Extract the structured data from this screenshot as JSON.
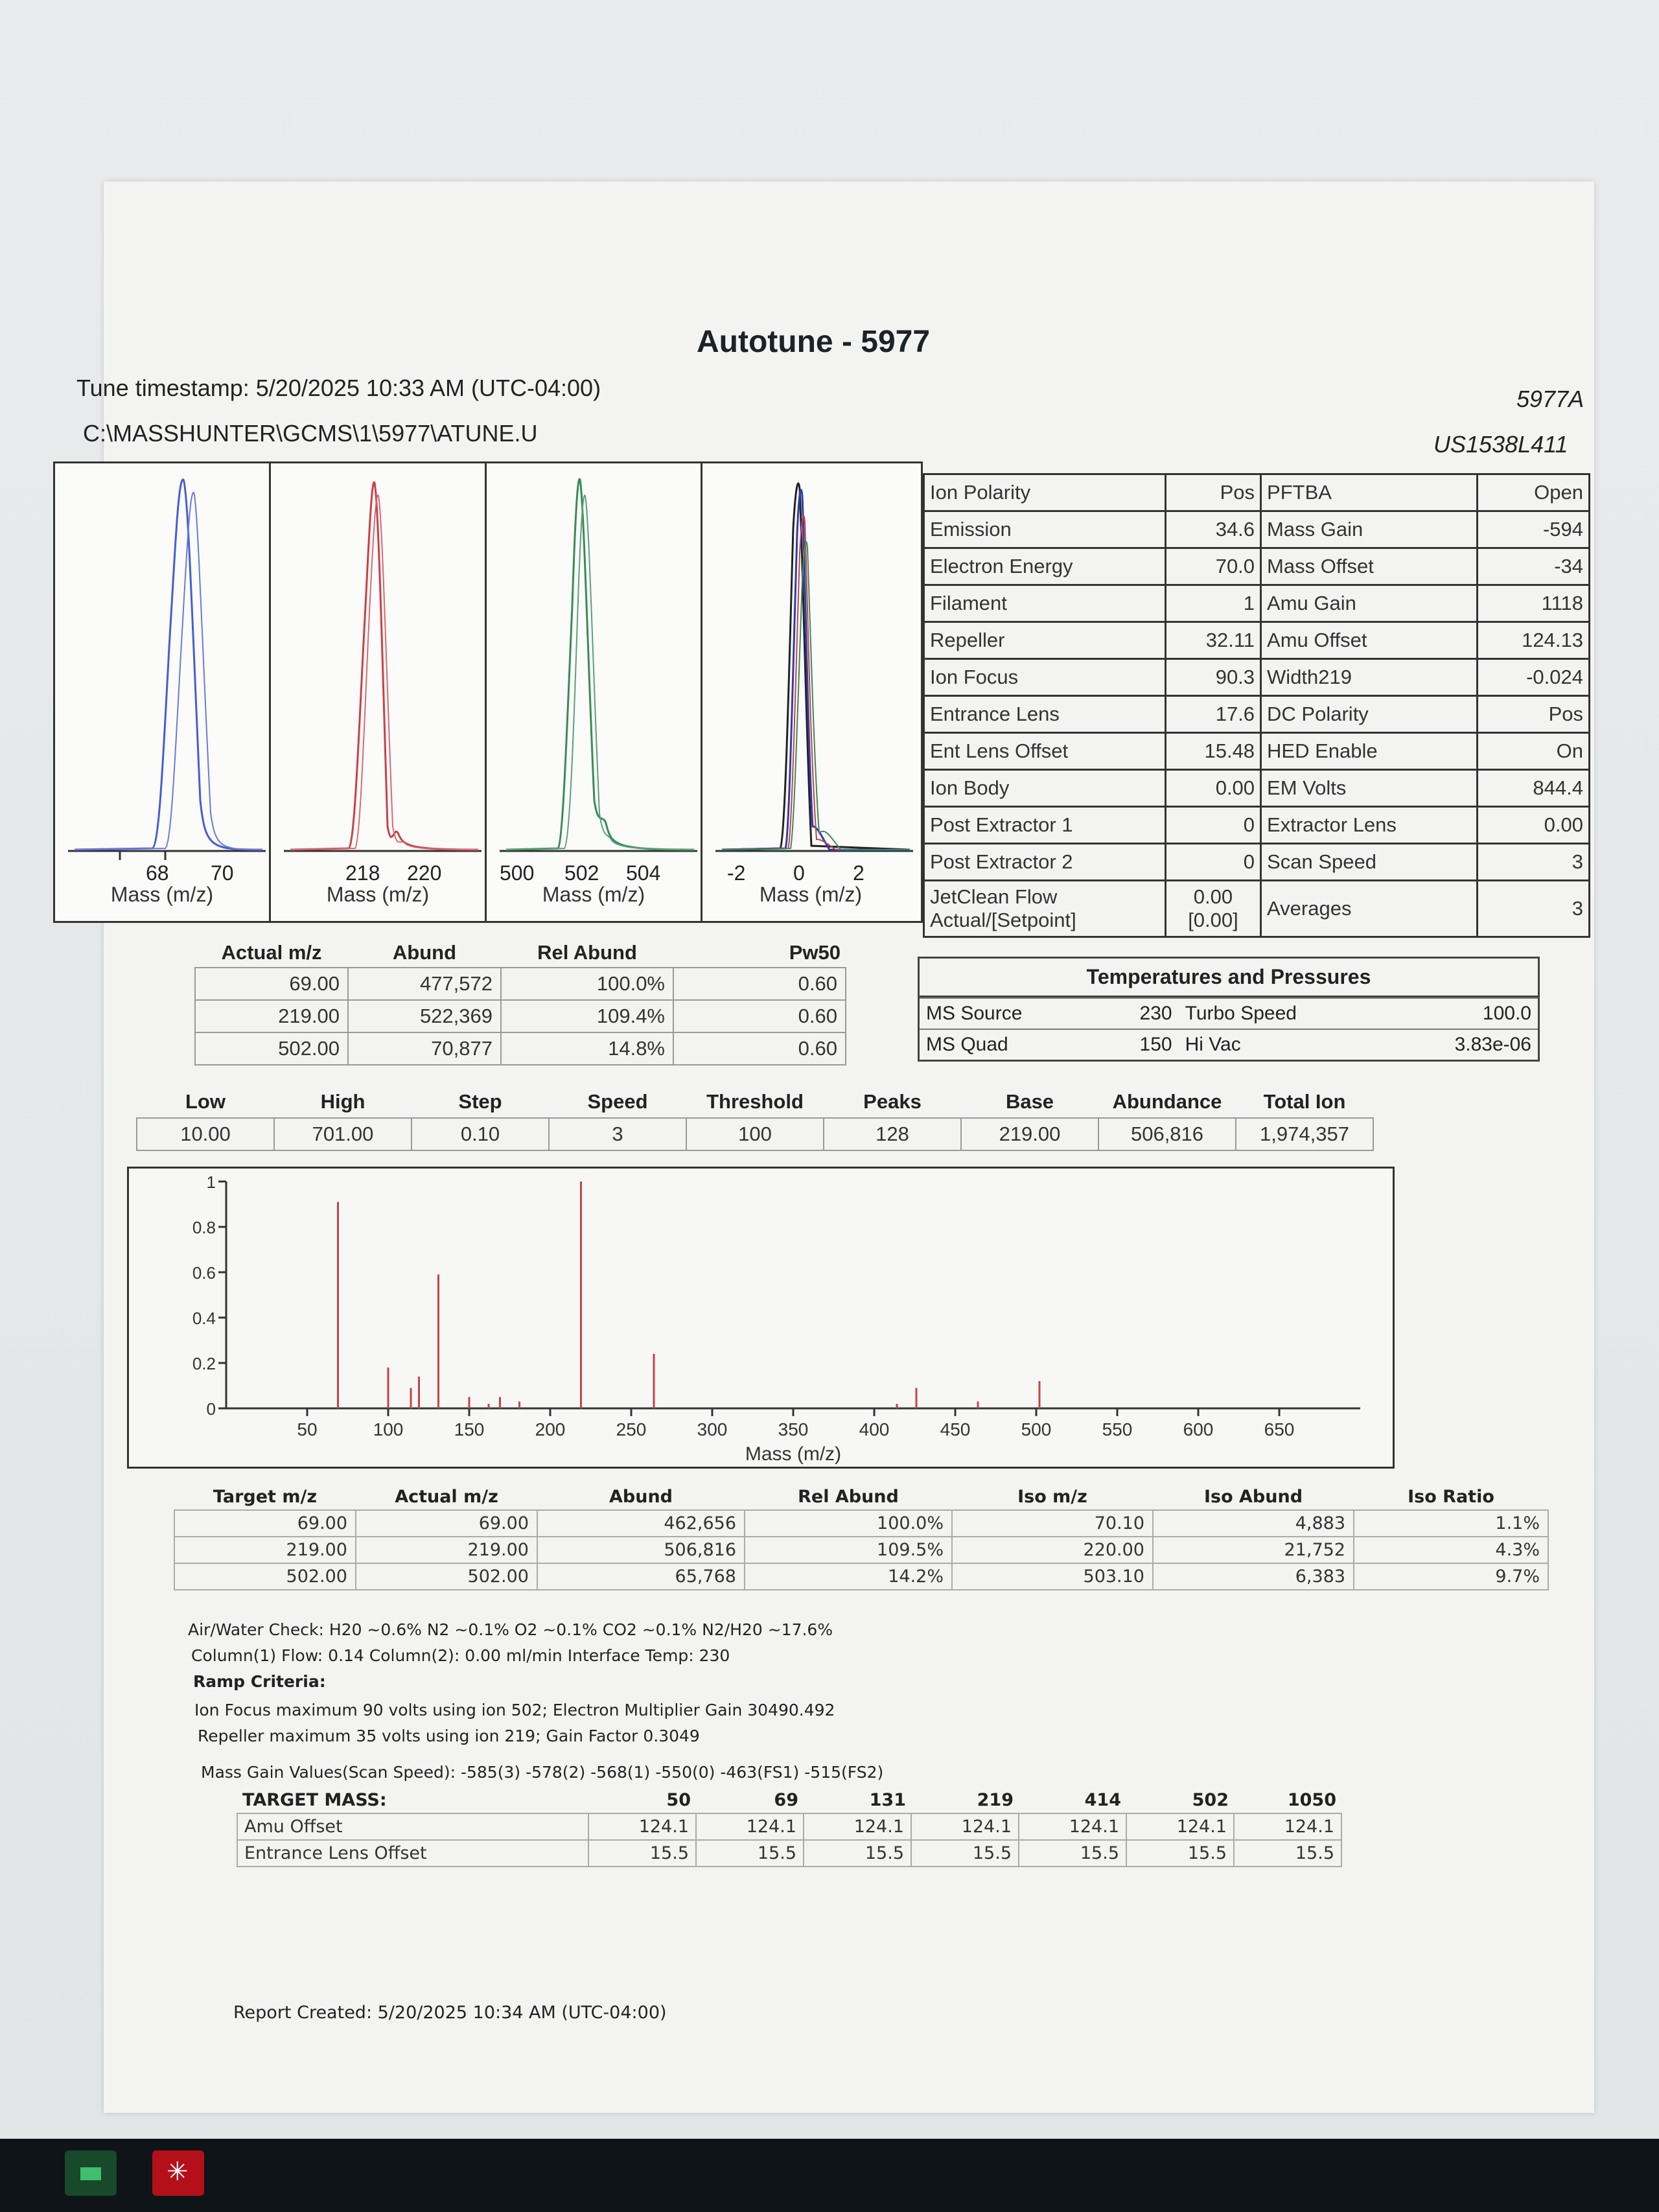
{
  "report": {
    "title": "Autotune - 5977",
    "timestamp": "Tune timestamp: 5/20/2025 10:33 AM  (UTC-04:00)",
    "path": "C:\\MASSHUNTER\\GCMS\\1\\5977\\ATUNE.U",
    "model": "5977A",
    "serial": "US1538L411",
    "created": "Report Created: 5/20/2025 10:34 AM  (UTC-04:00)"
  },
  "peak_panels": [
    {
      "ticks": [
        "68",
        "70"
      ],
      "xlabel": "Mass (m/z)",
      "color": "#4a5cd0"
    },
    {
      "ticks": [
        "218",
        "220"
      ],
      "xlabel": "Mass (m/z)",
      "color": "#c8404a"
    },
    {
      "ticks": [
        "500",
        "502",
        "504"
      ],
      "xlabel": "Mass (m/z)",
      "color": "#3a8a5a"
    },
    {
      "ticks": [
        "-2",
        "0",
        "2"
      ],
      "xlabel": "Mass (m/z)",
      "color": "#2d3fa8"
    }
  ],
  "params": [
    [
      "Ion Polarity",
      "Pos",
      "PFTBA",
      "Open"
    ],
    [
      "Emission",
      "34.6",
      "Mass Gain",
      "-594"
    ],
    [
      "Electron Energy",
      "70.0",
      "Mass Offset",
      "-34"
    ],
    [
      "Filament",
      "1",
      "Amu Gain",
      "1118"
    ],
    [
      "Repeller",
      "32.11",
      "Amu Offset",
      "124.13"
    ],
    [
      "Ion Focus",
      "90.3",
      "Width219",
      "-0.024"
    ],
    [
      "Entrance Lens",
      "17.6",
      "DC Polarity",
      "Pos"
    ],
    [
      "Ent Lens Offset",
      "15.48",
      "HED Enable",
      "On"
    ],
    [
      "Ion Body",
      "0.00",
      "EM Volts",
      "844.4"
    ],
    [
      "Post Extractor 1",
      "0",
      "Extractor Lens",
      "0.00"
    ],
    [
      "Post Extractor 2",
      "0",
      "Scan Speed",
      "3"
    ]
  ],
  "jetclean": {
    "label1": "JetClean Flow",
    "label2": "Actual/[Setpoint]",
    "val1": "0.00",
    "val2": "[0.00]",
    "avg_label": "Averages",
    "avg_val": "3"
  },
  "temps": {
    "title": "Temperatures and Pressures",
    "rows": [
      [
        "MS Source",
        "230",
        "Turbo Speed",
        "100.0"
      ],
      [
        "MS Quad",
        "150",
        "Hi Vac",
        "3.83e-06"
      ]
    ]
  },
  "ratio_table": {
    "headers": [
      "Actual m/z",
      "Abund",
      "Rel Abund",
      "Pw50"
    ],
    "rows": [
      [
        "69.00",
        "477,572",
        "100.0%",
        "0.60"
      ],
      [
        "219.00",
        "522,369",
        "109.4%",
        "0.60"
      ],
      [
        "502.00",
        "70,877",
        "14.8%",
        "0.60"
      ]
    ]
  },
  "scan_table": {
    "headers": [
      "Low",
      "High",
      "Step",
      "Speed",
      "Threshold",
      "Peaks",
      "Base",
      "Abundance",
      "Total Ion"
    ],
    "values": [
      "10.00",
      "701.00",
      "0.10",
      "3",
      "100",
      "128",
      "219.00",
      "506,816",
      "1,974,357"
    ]
  },
  "chart_data": {
    "type": "bar",
    "xlabel": "Mass (m/z)",
    "xlim": [
      0,
      700
    ],
    "ylim": [
      0,
      1
    ],
    "xticks": [
      "50",
      "100",
      "150",
      "200",
      "250",
      "300",
      "350",
      "400",
      "450",
      "500",
      "550",
      "600",
      "650"
    ],
    "yticks": [
      "0",
      "0.2",
      "0.4",
      "0.6",
      "0.8",
      "1"
    ],
    "x": [
      69,
      100,
      114,
      119,
      131,
      150,
      162,
      169,
      181,
      219,
      264,
      414,
      426,
      464,
      502
    ],
    "values": [
      0.91,
      0.18,
      0.09,
      0.14,
      0.59,
      0.05,
      0.02,
      0.05,
      0.03,
      1.0,
      0.24,
      0.02,
      0.09,
      0.03,
      0.12
    ],
    "color": "#c8404a"
  },
  "target_table": {
    "headers": [
      "Target m/z",
      "Actual m/z",
      "Abund",
      "Rel Abund",
      "Iso m/z",
      "Iso Abund",
      "Iso Ratio"
    ],
    "rows": [
      [
        "69.00",
        "69.00",
        "462,656",
        "100.0%",
        "70.10",
        "4,883",
        "1.1%"
      ],
      [
        "219.00",
        "219.00",
        "506,816",
        "109.5%",
        "220.00",
        "21,752",
        "4.3%"
      ],
      [
        "502.00",
        "502.00",
        "65,768",
        "14.2%",
        "503.10",
        "6,383",
        "9.7%"
      ]
    ]
  },
  "notes": {
    "airwater": "Air/Water Check:  H20 ~0.6%  N2 ~0.1%  O2 ~0.1%  CO2 ~0.1%  N2/H20 ~17.6%",
    "column": "Column(1) Flow:  0.14   Column(2):  0.00 ml/min    Interface Temp:  230",
    "ramp_title": "Ramp Criteria:",
    "ramp1": "Ion Focus maximum      90  volts using ion  502;     Electron Multiplier Gain 30490.492",
    "ramp2": "Repeller maximum       35 volts using ion  219;  Gain Factor  0.3049",
    "massgain": "Mass Gain Values(Scan Speed): -585(3)  -578(2)  -568(1)  -550(0)  -463(FS1)  -515(FS2)"
  },
  "target_mass": {
    "headers": [
      "TARGET MASS:",
      "50",
      "69",
      "131",
      "219",
      "414",
      "502",
      "1050"
    ],
    "rows": [
      [
        "Amu Offset",
        "124.1",
        "124.1",
        "124.1",
        "124.1",
        "124.1",
        "124.1",
        "124.1"
      ],
      [
        "Entrance Lens Offset",
        "15.5",
        "15.5",
        "15.5",
        "15.5",
        "15.5",
        "15.5",
        "15.5"
      ]
    ]
  },
  "taskbar": {
    "icons": [
      "excel-icon",
      "acrobat-icon"
    ]
  }
}
